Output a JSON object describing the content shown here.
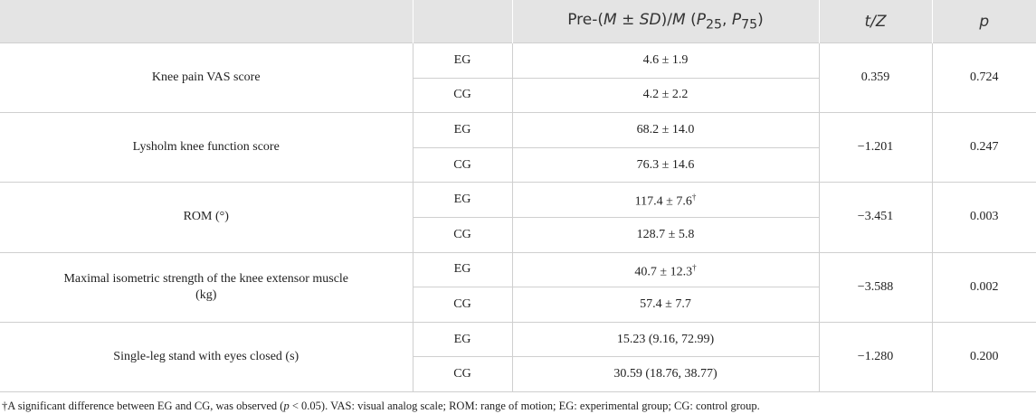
{
  "header": {
    "pre": [
      "Pre-(",
      "M",
      " ± ",
      "SD",
      ")/",
      "M",
      " (",
      "P",
      "25",
      ", ",
      "P",
      "75",
      ")"
    ],
    "tz": "t/Z",
    "p": "p"
  },
  "rows": [
    {
      "label": "Knee pain VAS score",
      "groups": [
        {
          "name": "EG",
          "value": "4.6 ± 1.9"
        },
        {
          "name": "CG",
          "value": "4.2 ± 2.2"
        }
      ],
      "t": "0.359",
      "p": "0.724"
    },
    {
      "label": "Lysholm knee function score",
      "groups": [
        {
          "name": "EG",
          "value": "68.2 ± 14.0"
        },
        {
          "name": "CG",
          "value": "76.3 ± 14.6"
        }
      ],
      "t": "−1.201",
      "p": "0.247"
    },
    {
      "label": "ROM (°)",
      "groups": [
        {
          "name": "EG",
          "value": "117.4 ± 7.6",
          "mark": "†"
        },
        {
          "name": "CG",
          "value": "128.7 ± 5.8"
        }
      ],
      "t": "−3.451",
      "p": "0.003"
    },
    {
      "label": "Maximal isometric strength of the knee extensor muscle (kg)",
      "groups": [
        {
          "name": "EG",
          "value": "40.7 ± 12.3",
          "mark": "†"
        },
        {
          "name": "CG",
          "value": "57.4 ± 7.7"
        }
      ],
      "t": "−3.588",
      "p": "0.002"
    },
    {
      "label": "Single-leg stand with eyes closed (s)",
      "groups": [
        {
          "name": "EG",
          "value": "15.23 (9.16, 72.99)"
        },
        {
          "name": "CG",
          "value": "30.59 (18.76, 38.77)"
        }
      ],
      "t": "−1.280",
      "p": "0.200"
    }
  ],
  "footnote": [
    "†A significant difference between EG and CG, was observed (",
    "p",
    " < 0.05). VAS: visual analog scale; ROM: range of motion; EG: experimental group; CG: control group."
  ]
}
